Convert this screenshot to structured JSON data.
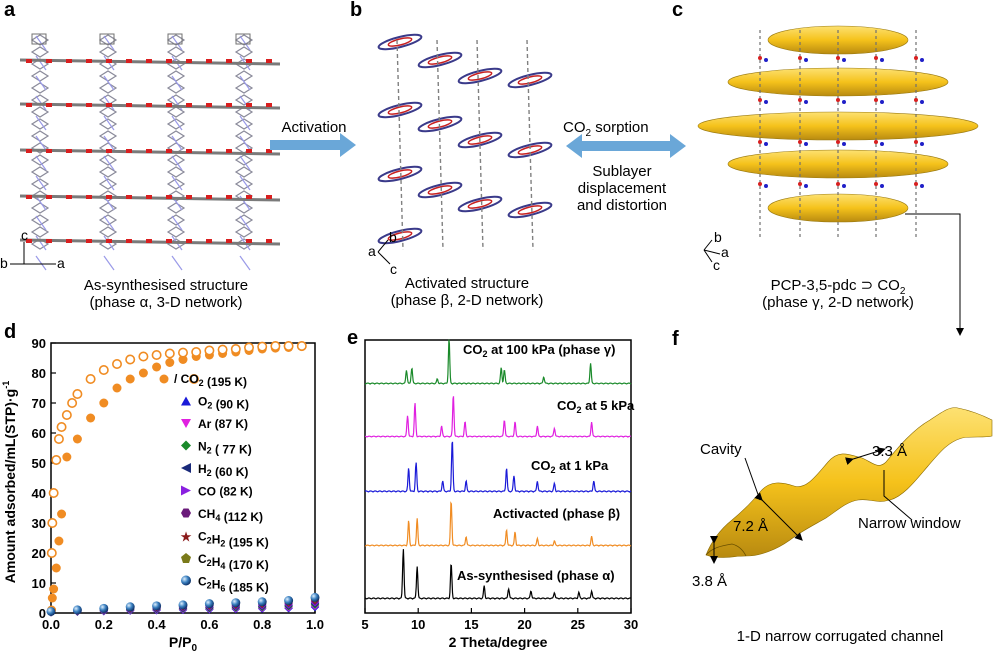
{
  "panels": {
    "a": {
      "label": "a",
      "caption_line1": "As-synthesised structure",
      "caption_line2": "(phase α, 3-D network)",
      "axes": {
        "c": "c",
        "b": "b",
        "a": "a"
      }
    },
    "b": {
      "label": "b",
      "caption_line1": "Activated structure",
      "caption_line2": "(phase β, 2-D network)",
      "axes": {
        "b": "b",
        "a": "a",
        "c": "c"
      }
    },
    "c": {
      "label": "c",
      "caption_line1": "PCP-3,5-pdc ⊃ CO",
      "caption_line1_sub": "2",
      "caption_line2": "(phase γ, 2-D network)",
      "axes": {
        "b": "b",
        "a": "a",
        "c": "c"
      }
    },
    "d": {
      "label": "d"
    },
    "e": {
      "label": "e"
    },
    "f": {
      "label": "f",
      "cavity": "Cavity",
      "dim1": "3.3 Å",
      "dim2": "7.2 Å",
      "dim3": "3.8 Å",
      "narrow_window": "Narrow window",
      "caption": "1-D narrow corrugated channel"
    }
  },
  "arrows": {
    "activation": "Activation",
    "co2_sorption_pre": "CO",
    "co2_sorption_sub": "2",
    "co2_sorption_post": " sorption",
    "sublayer_1": "Sublayer",
    "sublayer_2": "displacement",
    "sublayer_3": "and distortion"
  },
  "colors": {
    "orange": "#f08c23",
    "blue_arrow": "#6aa7d8",
    "yellow": "#f5c21b",
    "o2": "#1a1ad8",
    "ar": "#e020e0",
    "n2": "#1a8a2a",
    "h2": "#1a2a7a",
    "co": "#8a20e0",
    "ch4": "#6a1a7a",
    "c2h2": "#8a1a1a",
    "c2h4": "#7a7a1a",
    "c2h6": "#3a80c0"
  },
  "chart_data": [
    {
      "type": "scatter",
      "panel": "d",
      "xlabel": "P/P",
      "xlabel_sub": "0",
      "ylabel": "Amount adsorbed/mL(STP)·g",
      "ylabel_sup": "-1",
      "xlim": [
        0.0,
        1.0
      ],
      "ylim": [
        0,
        90
      ],
      "xticks": [
        "0.0",
        "0.2",
        "0.4",
        "0.6",
        "0.8",
        "1.0"
      ],
      "yticks": [
        "0",
        "10",
        "20",
        "30",
        "40",
        "50",
        "60",
        "70",
        "80",
        "90"
      ],
      "legend": [
        {
          "pre": "/ ",
          "gas": "CO",
          "sub": "2",
          "temp": " (195 K)",
          "marker": "circle-pair",
          "color": "#f08c23"
        },
        {
          "gas": "O",
          "sub": "2",
          "temp": " (90 K)",
          "marker": "triangle-up",
          "color": "#1a1ad8"
        },
        {
          "gas": "Ar",
          "sub": "",
          "temp": " (87 K)",
          "marker": "triangle-down",
          "color": "#e020e0"
        },
        {
          "gas": "N",
          "sub": "2",
          "temp": " ( 77 K)",
          "marker": "diamond",
          "color": "#1a8a2a"
        },
        {
          "gas": "H",
          "sub": "2",
          "temp": " (60 K)",
          "marker": "triangle-left",
          "color": "#1a2a7a"
        },
        {
          "gas": "CO",
          "sub": "",
          "temp": " (82 K)",
          "marker": "triangle-right",
          "color": "#8a20e0"
        },
        {
          "gas": "CH",
          "sub": "4",
          "temp": " (112 K)",
          "marker": "hexagon",
          "color": "#6a1a7a"
        },
        {
          "gas": "C",
          "sub": "2",
          "gas2": "H",
          "sub2": "2",
          "temp": " (195 K)",
          "marker": "star",
          "color": "#8a1a1a"
        },
        {
          "gas": "C",
          "sub": "2",
          "gas2": "H",
          "sub2": "4",
          "temp": " (170 K)",
          "marker": "pentagon",
          "color": "#7a7a1a"
        },
        {
          "gas": "C",
          "sub": "2",
          "gas2": "H",
          "sub2": "6",
          "temp": " (185 K)",
          "marker": "sphere",
          "color": "#3a80c0"
        }
      ],
      "series": [
        {
          "name": "CO2 (195 K) adsorption",
          "style": "filled",
          "color": "#f08c23",
          "x": [
            0.002,
            0.005,
            0.01,
            0.02,
            0.03,
            0.04,
            0.06,
            0.1,
            0.15,
            0.2,
            0.25,
            0.3,
            0.35,
            0.4,
            0.45,
            0.5,
            0.55,
            0.6,
            0.65,
            0.7,
            0.75,
            0.8,
            0.85,
            0.9,
            0.95
          ],
          "y": [
            1,
            5,
            8,
            15,
            24,
            33,
            52,
            58,
            65,
            70,
            75,
            78,
            80,
            82,
            83.5,
            84.5,
            85.5,
            86,
            86.5,
            87,
            87.5,
            88,
            88.3,
            88.5,
            88.8
          ]
        },
        {
          "name": "CO2 (195 K) desorption",
          "style": "open",
          "color": "#f08c23",
          "x": [
            0.95,
            0.9,
            0.85,
            0.8,
            0.75,
            0.7,
            0.65,
            0.6,
            0.55,
            0.5,
            0.45,
            0.4,
            0.35,
            0.3,
            0.25,
            0.2,
            0.15,
            0.1,
            0.08,
            0.06,
            0.04,
            0.03,
            0.02,
            0.01,
            0.005,
            0.003
          ],
          "y": [
            89,
            89,
            89,
            88.8,
            88.5,
            88,
            87.8,
            87.5,
            87,
            86.8,
            86.5,
            86,
            85.5,
            84.5,
            83,
            81,
            78,
            73,
            70,
            66,
            62,
            58,
            51,
            40,
            30,
            20
          ]
        },
        {
          "name": "gases",
          "style": "low",
          "x": [
            0.0,
            0.1,
            0.2,
            0.3,
            0.4,
            0.5,
            0.6,
            0.7,
            0.8,
            0.9,
            1.0
          ],
          "y": [
            0.5,
            1,
            1.5,
            2,
            2.3,
            2.6,
            3,
            3.3,
            3.6,
            4,
            5
          ]
        }
      ]
    },
    {
      "type": "line",
      "panel": "e",
      "xlabel": "2 Theta/degree",
      "xlim": [
        5,
        30
      ],
      "xticks": [
        "5",
        "10",
        "15",
        "20",
        "25",
        "30"
      ],
      "series": [
        {
          "name": "As-synthesised (phase α)",
          "label_sub": "",
          "color": "#000000",
          "peaks": [
            [
              8.6,
              1.0
            ],
            [
              9.9,
              0.65
            ],
            [
              13.1,
              0.7
            ],
            [
              16.2,
              0.25
            ],
            [
              18.5,
              0.2
            ],
            [
              20.6,
              0.15
            ],
            [
              22.8,
              0.12
            ],
            [
              25.1,
              0.12
            ],
            [
              26.3,
              0.15
            ]
          ]
        },
        {
          "name": "Activacted (phase β)",
          "label_sub": "",
          "color": "#f08c23",
          "peaks": [
            [
              9.1,
              0.55
            ],
            [
              9.9,
              0.6
            ],
            [
              13.1,
              1.0
            ],
            [
              14.5,
              0.2
            ],
            [
              18.3,
              0.35
            ],
            [
              19.1,
              0.3
            ],
            [
              21.2,
              0.15
            ],
            [
              22.8,
              0.1
            ],
            [
              26.3,
              0.2
            ]
          ]
        },
        {
          "name": "CO2 at 1 kPa",
          "label_pre": "CO",
          "label_sub": "2",
          "label_post": " at 1 kPa",
          "color": "#1a1ad8",
          "peaks": [
            [
              9.1,
              0.45
            ],
            [
              9.8,
              0.55
            ],
            [
              12.3,
              0.2
            ],
            [
              13.2,
              1.0
            ],
            [
              14.5,
              0.2
            ],
            [
              18.3,
              0.45
            ],
            [
              19.0,
              0.3
            ],
            [
              21.2,
              0.2
            ],
            [
              22.8,
              0.15
            ],
            [
              26.5,
              0.2
            ]
          ]
        },
        {
          "name": "CO2 at 5 kPa",
          "label_pre": "CO",
          "label_sub": "2",
          "label_post": " at 5 kPa",
          "color": "#e020e0",
          "peaks": [
            [
              9.0,
              0.5
            ],
            [
              9.7,
              0.8
            ],
            [
              12.2,
              0.25
            ],
            [
              13.3,
              1.0
            ],
            [
              14.4,
              0.35
            ],
            [
              18.1,
              0.4
            ],
            [
              19.1,
              0.35
            ],
            [
              21.2,
              0.25
            ],
            [
              22.8,
              0.2
            ],
            [
              26.3,
              0.35
            ]
          ]
        },
        {
          "name": "CO2 at 100 kPa (phase γ)",
          "label_pre": "CO",
          "label_sub": "2",
          "label_post": " at 100 kPa (phase γ)",
          "color": "#1a8a2a",
          "peaks": [
            [
              8.9,
              0.3
            ],
            [
              9.4,
              0.35
            ],
            [
              11.8,
              0.1
            ],
            [
              12.9,
              1.0
            ],
            [
              17.8,
              0.35
            ],
            [
              18.1,
              0.3
            ],
            [
              21.8,
              0.15
            ],
            [
              26.2,
              0.45
            ]
          ]
        }
      ]
    }
  ]
}
